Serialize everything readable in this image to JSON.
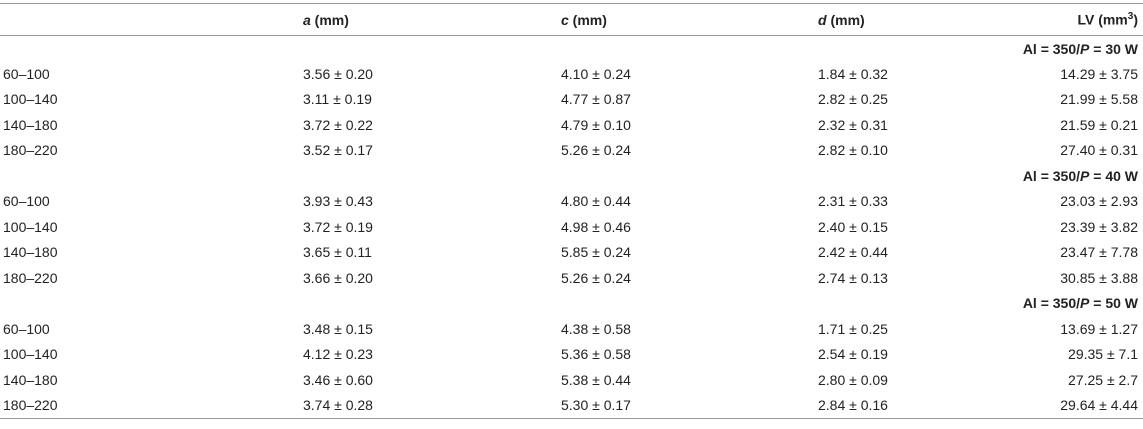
{
  "table": {
    "header": [
      [
        {
          "text": "a",
          "italic": true
        },
        {
          "text": " (mm)"
        }
      ],
      [
        {
          "text": "c",
          "italic": true
        },
        {
          "text": " (mm)"
        }
      ],
      [
        {
          "text": "d",
          "italic": true
        },
        {
          "text": " (mm)"
        }
      ],
      [
        {
          "text": "LV (mm"
        },
        {
          "text": "3",
          "sup": true
        },
        {
          "text": ")"
        }
      ]
    ],
    "groups": [
      {
        "label": [
          {
            "text": "Al = 350/"
          },
          {
            "text": "P",
            "italic": true
          },
          {
            "text": " = 30 W"
          }
        ],
        "rows": [
          [
            "60–100",
            "3.56 ± 0.20",
            "4.10 ± 0.24",
            "1.84 ± 0.32",
            "14.29 ± 3.75"
          ],
          [
            "100–140",
            "3.11 ± 0.19",
            "4.77 ± 0.87",
            "2.82 ± 0.25",
            "21.99 ± 5.58"
          ],
          [
            "140–180",
            "3.72 ± 0.22",
            "4.79 ± 0.10",
            "2.32 ± 0.31",
            "21.59 ± 0.21"
          ],
          [
            "180–220",
            "3.52 ± 0.17",
            "5.26 ± 0.24",
            "2.82 ± 0.10",
            "27.40 ± 0.31"
          ]
        ]
      },
      {
        "label": [
          {
            "text": "Al = 350/"
          },
          {
            "text": "P",
            "italic": true
          },
          {
            "text": " = 40 W"
          }
        ],
        "rows": [
          [
            "60–100",
            "3.93 ± 0.43",
            "4.80 ± 0.44",
            "2.31 ± 0.33",
            "23.03 ± 2.93"
          ],
          [
            "100–140",
            "3.72 ± 0.19",
            "4.98 ± 0.46",
            "2.40 ± 0.15",
            "23.39 ± 3.82"
          ],
          [
            "140–180",
            "3.65 ± 0.11",
            "5.85 ± 0.24",
            "2.42 ± 0.44",
            "23.47 ± 7.78"
          ],
          [
            "180–220",
            "3.66 ± 0.20",
            "5.26 ± 0.24",
            "2.74 ± 0.13",
            "30.85 ± 3.88"
          ]
        ]
      },
      {
        "label": [
          {
            "text": "Al = 350/"
          },
          {
            "text": "P",
            "italic": true
          },
          {
            "text": " = 50 W"
          }
        ],
        "rows": [
          [
            "60–100",
            "3.48 ± 0.15",
            "4.38 ± 0.58",
            "1.71 ± 0.25",
            "13.69 ± 1.27"
          ],
          [
            "100–140",
            "4.12 ± 0.23",
            "5.36 ± 0.58",
            "2.54 ± 0.19",
            "29.35 ± 7.1"
          ],
          [
            "140–180",
            "3.46 ± 0.60",
            "5.38 ± 0.44",
            "2.80 ± 0.09",
            "27.25 ± 2.7"
          ],
          [
            "180–220",
            "3.74 ± 0.28",
            "5.30 ± 0.17",
            "2.84 ± 0.16",
            "29.64 ± 4.44"
          ]
        ]
      }
    ]
  }
}
